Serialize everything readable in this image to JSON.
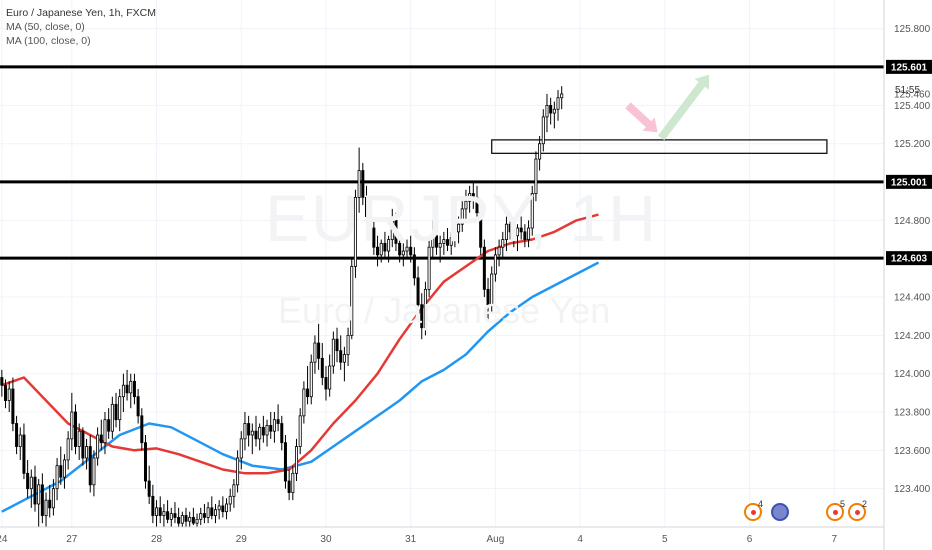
{
  "legend": {
    "symbol": "Euro / Japanese Yen, 1h, FXCM",
    "ma50": "MA (50, close, 0)",
    "ma100": "MA (100, close, 0)"
  },
  "watermark": {
    "ticker": "EURJPY, 1H",
    "name": "Euro / Japanese Yen"
  },
  "timer": "51:55",
  "colors": {
    "up": "#000000",
    "down": "#000000",
    "ma50": "#e53935",
    "ma100": "#2196f3",
    "level_line": "#000000",
    "grid": "#f0f3fa",
    "arrow_down": "#f8bbd0",
    "arrow_up": "#c8e6c9",
    "event_border": "#f57c00"
  },
  "events": [
    {
      "count": "4",
      "type": "flag-icon"
    },
    {
      "count": "",
      "type": "globe-icon"
    },
    {
      "count": "5",
      "type": "flag-icon"
    },
    {
      "count": "2",
      "type": "flag-icon"
    }
  ],
  "chart_data": {
    "type": "candlestick",
    "title": "Euro / Japanese Yen, 1h, FXCM",
    "y_axis": {
      "side": "right",
      "ylim": [
        123.2,
        125.95
      ],
      "ticks": [
        "125.800",
        "125.600",
        "125.400",
        "125.200",
        "125.000",
        "124.800",
        "124.600",
        "124.400",
        "124.200",
        "124.000",
        "123.800",
        "123.600",
        "123.400"
      ],
      "tick_values": [
        125.8,
        125.6,
        125.4,
        125.2,
        125.0,
        124.8,
        124.6,
        124.4,
        124.2,
        124.0,
        123.8,
        123.6,
        123.4
      ]
    },
    "x_axis": {
      "ticks": [
        "24",
        "27",
        "28",
        "29",
        "30",
        "31",
        "Aug",
        "4",
        "5",
        "6",
        "7"
      ],
      "tick_positions": [
        0,
        19,
        42,
        65,
        88,
        111,
        134,
        157,
        180,
        203,
        226
      ],
      "total_bars": 240
    },
    "horizontal_levels": [
      {
        "price": 125.601,
        "label": "125.601"
      },
      {
        "price": 125.001,
        "label": "125.001"
      },
      {
        "price": 124.603,
        "label": "124.603"
      }
    ],
    "last_price": {
      "price": 125.46,
      "label": "125.460"
    },
    "resistance_box": {
      "price_top": 125.22,
      "price_bottom": 125.15,
      "from_bar": 133,
      "to_bar": 224
    },
    "candles_ohlc": [
      [
        123.98,
        124.02,
        123.88,
        123.94
      ],
      [
        123.94,
        123.97,
        123.82,
        123.86
      ],
      [
        123.86,
        123.96,
        123.8,
        123.92
      ],
      [
        123.92,
        123.98,
        123.7,
        123.74
      ],
      [
        123.74,
        123.78,
        123.58,
        123.62
      ],
      [
        123.62,
        123.72,
        123.55,
        123.68
      ],
      [
        123.68,
        123.74,
        123.45,
        123.48
      ],
      [
        123.48,
        123.55,
        123.35,
        123.4
      ],
      [
        123.4,
        123.5,
        123.3,
        123.46
      ],
      [
        123.46,
        123.52,
        123.28,
        123.32
      ],
      [
        123.32,
        123.45,
        123.2,
        123.42
      ],
      [
        123.42,
        123.48,
        123.22,
        123.26
      ],
      [
        123.26,
        123.38,
        123.2,
        123.34
      ],
      [
        123.34,
        123.42,
        123.25,
        123.3
      ],
      [
        123.3,
        123.45,
        123.26,
        123.4
      ],
      [
        123.4,
        123.56,
        123.34,
        123.52
      ],
      [
        123.52,
        123.62,
        123.42,
        123.46
      ],
      [
        123.46,
        123.58,
        123.4,
        123.55
      ],
      [
        123.55,
        123.7,
        123.5,
        123.66
      ],
      [
        123.66,
        123.9,
        123.6,
        123.8
      ],
      [
        123.8,
        123.84,
        123.58,
        123.62
      ],
      [
        123.62,
        123.74,
        123.55,
        123.7
      ],
      [
        123.7,
        123.72,
        123.52,
        123.56
      ],
      [
        123.56,
        123.66,
        123.5,
        123.62
      ],
      [
        123.62,
        123.68,
        123.38,
        123.42
      ],
      [
        123.42,
        123.6,
        123.36,
        123.56
      ],
      [
        123.56,
        123.72,
        123.52,
        123.68
      ],
      [
        123.68,
        123.76,
        123.6,
        123.64
      ],
      [
        123.64,
        123.8,
        123.58,
        123.76
      ],
      [
        123.76,
        123.82,
        123.66,
        123.7
      ],
      [
        123.7,
        123.88,
        123.66,
        123.84
      ],
      [
        123.84,
        123.9,
        123.72,
        123.76
      ],
      [
        123.76,
        123.92,
        123.7,
        123.88
      ],
      [
        123.88,
        124.0,
        123.8,
        123.94
      ],
      [
        123.94,
        124.02,
        123.86,
        123.9
      ],
      [
        123.9,
        124.0,
        123.82,
        123.96
      ],
      [
        123.96,
        124.0,
        123.84,
        123.88
      ],
      [
        123.88,
        123.92,
        123.74,
        123.78
      ],
      [
        123.78,
        123.82,
        123.6,
        123.64
      ],
      [
        123.64,
        123.68,
        123.4,
        123.44
      ],
      [
        123.44,
        123.52,
        123.32,
        123.36
      ],
      [
        123.36,
        123.42,
        123.22,
        123.26
      ],
      [
        123.26,
        123.34,
        123.2,
        123.3
      ],
      [
        123.3,
        123.36,
        123.22,
        123.26
      ],
      [
        123.26,
        123.32,
        123.2,
        123.28
      ],
      [
        123.28,
        123.34,
        123.22,
        123.24
      ],
      [
        123.24,
        123.3,
        123.2,
        123.27
      ],
      [
        123.27,
        123.33,
        123.22,
        123.25
      ],
      [
        123.25,
        123.3,
        123.2,
        123.22
      ],
      [
        123.22,
        123.28,
        123.2,
        123.26
      ],
      [
        123.26,
        123.3,
        123.2,
        123.23
      ],
      [
        123.23,
        123.28,
        123.2,
        123.25
      ],
      [
        123.25,
        123.3,
        123.21,
        123.22
      ],
      [
        123.22,
        123.27,
        123.2,
        123.24
      ],
      [
        123.24,
        123.3,
        123.21,
        123.27
      ],
      [
        123.27,
        123.32,
        123.22,
        123.25
      ],
      [
        123.25,
        123.33,
        123.22,
        123.3
      ],
      [
        123.3,
        123.36,
        123.24,
        123.26
      ],
      [
        123.26,
        123.32,
        123.22,
        123.29
      ],
      [
        123.29,
        123.34,
        123.24,
        123.31
      ],
      [
        123.31,
        123.36,
        123.25,
        123.28
      ],
      [
        123.28,
        123.35,
        123.24,
        123.32
      ],
      [
        123.32,
        123.4,
        123.28,
        123.36
      ],
      [
        123.36,
        123.45,
        123.3,
        123.42
      ],
      [
        123.42,
        123.6,
        123.38,
        123.56
      ],
      [
        123.56,
        123.7,
        123.5,
        123.66
      ],
      [
        123.66,
        123.8,
        123.6,
        123.74
      ],
      [
        123.74,
        123.78,
        123.62,
        123.68
      ],
      [
        123.68,
        123.74,
        123.58,
        123.7
      ],
      [
        123.7,
        123.78,
        123.62,
        123.66
      ],
      [
        123.66,
        123.74,
        123.6,
        123.72
      ],
      [
        123.72,
        123.78,
        123.64,
        123.68
      ],
      [
        123.68,
        123.76,
        123.62,
        123.73
      ],
      [
        123.73,
        123.8,
        123.66,
        123.7
      ],
      [
        123.7,
        123.8,
        123.64,
        123.76
      ],
      [
        123.76,
        123.84,
        123.7,
        123.74
      ],
      [
        123.74,
        123.78,
        123.6,
        123.64
      ],
      [
        123.64,
        123.68,
        123.4,
        123.44
      ],
      [
        123.44,
        123.5,
        123.34,
        123.38
      ],
      [
        123.38,
        123.52,
        123.34,
        123.48
      ],
      [
        123.48,
        123.66,
        123.44,
        123.62
      ],
      [
        123.62,
        123.82,
        123.58,
        123.78
      ],
      [
        123.78,
        123.96,
        123.74,
        123.92
      ],
      [
        123.92,
        124.04,
        123.84,
        123.88
      ],
      [
        123.88,
        124.1,
        123.84,
        124.06
      ],
      [
        124.06,
        124.2,
        124.0,
        124.16
      ],
      [
        124.16,
        124.26,
        124.02,
        124.08
      ],
      [
        124.08,
        124.16,
        123.94,
        123.98
      ],
      [
        123.98,
        124.04,
        123.86,
        123.92
      ],
      [
        123.92,
        124.1,
        123.88,
        124.04
      ],
      [
        124.04,
        124.22,
        124.0,
        124.18
      ],
      [
        124.18,
        124.24,
        124.06,
        124.12
      ],
      [
        124.12,
        124.2,
        124.02,
        124.06
      ],
      [
        124.06,
        124.14,
        123.96,
        124.1
      ],
      [
        124.1,
        124.24,
        124.04,
        124.2
      ],
      [
        124.2,
        124.6,
        124.18,
        124.56
      ],
      [
        124.56,
        124.96,
        124.5,
        124.92
      ],
      [
        124.92,
        125.18,
        124.84,
        125.06
      ],
      [
        125.06,
        125.1,
        124.88,
        124.92
      ],
      [
        124.92,
        124.98,
        124.78,
        124.82
      ],
      [
        124.82,
        124.88,
        124.7,
        124.76
      ],
      [
        124.76,
        124.8,
        124.62,
        124.66
      ],
      [
        124.66,
        124.72,
        124.56,
        124.62
      ],
      [
        124.62,
        124.7,
        124.58,
        124.68
      ],
      [
        124.68,
        124.74,
        124.6,
        124.64
      ],
      [
        124.64,
        124.72,
        124.58,
        124.7
      ],
      [
        124.7,
        124.86,
        124.66,
        124.8
      ],
      [
        124.8,
        124.84,
        124.64,
        124.68
      ],
      [
        124.68,
        124.72,
        124.58,
        124.62
      ],
      [
        124.62,
        124.68,
        124.56,
        124.64
      ],
      [
        124.64,
        124.7,
        124.6,
        124.66
      ],
      [
        124.66,
        124.72,
        124.58,
        124.62
      ],
      [
        124.62,
        124.66,
        124.46,
        124.5
      ],
      [
        124.5,
        124.56,
        124.32,
        124.36
      ],
      [
        124.36,
        124.42,
        124.18,
        124.24
      ],
      [
        124.24,
        124.48,
        124.2,
        124.44
      ],
      [
        124.44,
        124.7,
        124.4,
        124.66
      ],
      [
        124.66,
        124.8,
        124.6,
        124.72
      ],
      [
        124.72,
        124.78,
        124.62,
        124.66
      ],
      [
        124.66,
        124.72,
        124.58,
        124.68
      ],
      [
        124.68,
        124.74,
        124.62,
        124.7
      ],
      [
        124.7,
        124.76,
        124.64,
        124.67
      ],
      [
        124.67,
        124.74,
        124.62,
        124.71
      ],
      [
        124.71,
        124.78,
        124.66,
        124.74
      ],
      [
        124.74,
        124.82,
        124.68,
        124.78
      ],
      [
        124.78,
        124.9,
        124.74,
        124.86
      ],
      [
        124.86,
        124.96,
        124.8,
        124.9
      ],
      [
        124.9,
        124.98,
        124.84,
        124.94
      ],
      [
        124.94,
        125.0,
        124.86,
        124.92
      ],
      [
        124.92,
        124.98,
        124.8,
        124.84
      ],
      [
        124.84,
        124.88,
        124.62,
        124.66
      ],
      [
        124.66,
        124.7,
        124.4,
        124.44
      ],
      [
        124.44,
        124.5,
        124.28,
        124.36
      ],
      [
        124.36,
        124.56,
        124.32,
        124.52
      ],
      [
        124.52,
        124.66,
        124.48,
        124.62
      ],
      [
        124.62,
        124.7,
        124.56,
        124.66
      ],
      [
        124.66,
        124.74,
        124.6,
        124.7
      ],
      [
        124.7,
        124.82,
        124.64,
        124.78
      ],
      [
        124.78,
        124.84,
        124.7,
        124.74
      ],
      [
        124.74,
        124.8,
        124.66,
        124.72
      ],
      [
        124.72,
        124.78,
        124.64,
        124.76
      ],
      [
        124.76,
        124.82,
        124.7,
        124.74
      ],
      [
        124.74,
        124.78,
        124.66,
        124.7
      ],
      [
        124.7,
        124.8,
        124.66,
        124.76
      ],
      [
        124.76,
        124.98,
        124.72,
        124.94
      ],
      [
        124.94,
        125.16,
        124.9,
        125.12
      ],
      [
        125.12,
        125.24,
        125.06,
        125.2
      ],
      [
        125.2,
        125.38,
        125.16,
        125.34
      ],
      [
        125.34,
        125.46,
        125.26,
        125.4
      ],
      [
        125.4,
        125.44,
        125.3,
        125.36
      ],
      [
        125.36,
        125.42,
        125.28,
        125.38
      ],
      [
        125.38,
        125.48,
        125.32,
        125.44
      ],
      [
        125.44,
        125.5,
        125.38,
        125.46
      ]
    ],
    "ma50_points": [
      [
        0,
        123.94
      ],
      [
        6,
        123.98
      ],
      [
        12,
        123.86
      ],
      [
        18,
        123.74
      ],
      [
        24,
        123.68
      ],
      [
        30,
        123.62
      ],
      [
        36,
        123.6
      ],
      [
        42,
        123.61
      ],
      [
        48,
        123.58
      ],
      [
        54,
        123.54
      ],
      [
        60,
        123.5
      ],
      [
        66,
        123.48
      ],
      [
        72,
        123.48
      ],
      [
        78,
        123.5
      ],
      [
        84,
        123.6
      ],
      [
        90,
        123.74
      ],
      [
        96,
        123.86
      ],
      [
        102,
        124.0
      ],
      [
        108,
        124.18
      ],
      [
        114,
        124.34
      ],
      [
        120,
        124.48
      ],
      [
        126,
        124.56
      ],
      [
        132,
        124.64
      ],
      [
        138,
        124.68
      ],
      [
        144,
        124.7
      ],
      [
        150,
        124.74
      ],
      [
        156,
        124.8
      ],
      [
        162,
        124.83
      ]
    ],
    "ma100_points": [
      [
        0,
        123.28
      ],
      [
        8,
        123.36
      ],
      [
        16,
        123.44
      ],
      [
        24,
        123.56
      ],
      [
        32,
        123.68
      ],
      [
        40,
        123.74
      ],
      [
        46,
        123.72
      ],
      [
        52,
        123.66
      ],
      [
        60,
        123.58
      ],
      [
        68,
        123.52
      ],
      [
        76,
        123.5
      ],
      [
        84,
        123.54
      ],
      [
        90,
        123.62
      ],
      [
        96,
        123.7
      ],
      [
        102,
        123.78
      ],
      [
        108,
        123.86
      ],
      [
        114,
        123.96
      ],
      [
        120,
        124.02
      ],
      [
        126,
        124.1
      ],
      [
        132,
        124.22
      ],
      [
        138,
        124.32
      ],
      [
        144,
        124.4
      ],
      [
        150,
        124.46
      ],
      [
        156,
        124.52
      ],
      [
        162,
        124.58
      ]
    ],
    "arrows": [
      {
        "from_bar": 170,
        "from_price": 125.4,
        "to_bar": 178,
        "to_price": 125.26,
        "direction": "down"
      },
      {
        "from_bar": 179,
        "from_price": 125.23,
        "to_bar": 192,
        "to_price": 125.56,
        "direction": "up"
      }
    ]
  }
}
